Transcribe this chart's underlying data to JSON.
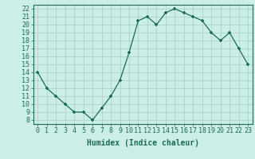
{
  "x_values": [
    0,
    1,
    2,
    3,
    4,
    5,
    6,
    7,
    8,
    9,
    10,
    11,
    12,
    13,
    14,
    15,
    16,
    17,
    18,
    19,
    20,
    21,
    22,
    23
  ],
  "y_values": [
    14,
    12,
    11,
    10,
    9,
    9,
    8,
    9.5,
    11,
    13,
    16.5,
    20.5,
    21,
    20,
    21.5,
    22,
    21.5,
    21,
    20.5,
    19,
    18,
    19,
    17,
    15
  ],
  "line_color": "#1a6b5a",
  "marker_color": "#1a6b5a",
  "bg_color": "#cceee8",
  "grid_color": "#aaccc8",
  "xlabel": "Humidex (Indice chaleur)",
  "ylabel_ticks": [
    8,
    9,
    10,
    11,
    12,
    13,
    14,
    15,
    16,
    17,
    18,
    19,
    20,
    21,
    22
  ],
  "ylim": [
    7.5,
    22.5
  ],
  "xlim": [
    -0.5,
    23.5
  ],
  "tick_color": "#1a6b5a",
  "axis_color": "#1a6b5a",
  "label_fontsize": 7,
  "tick_fontsize": 6
}
